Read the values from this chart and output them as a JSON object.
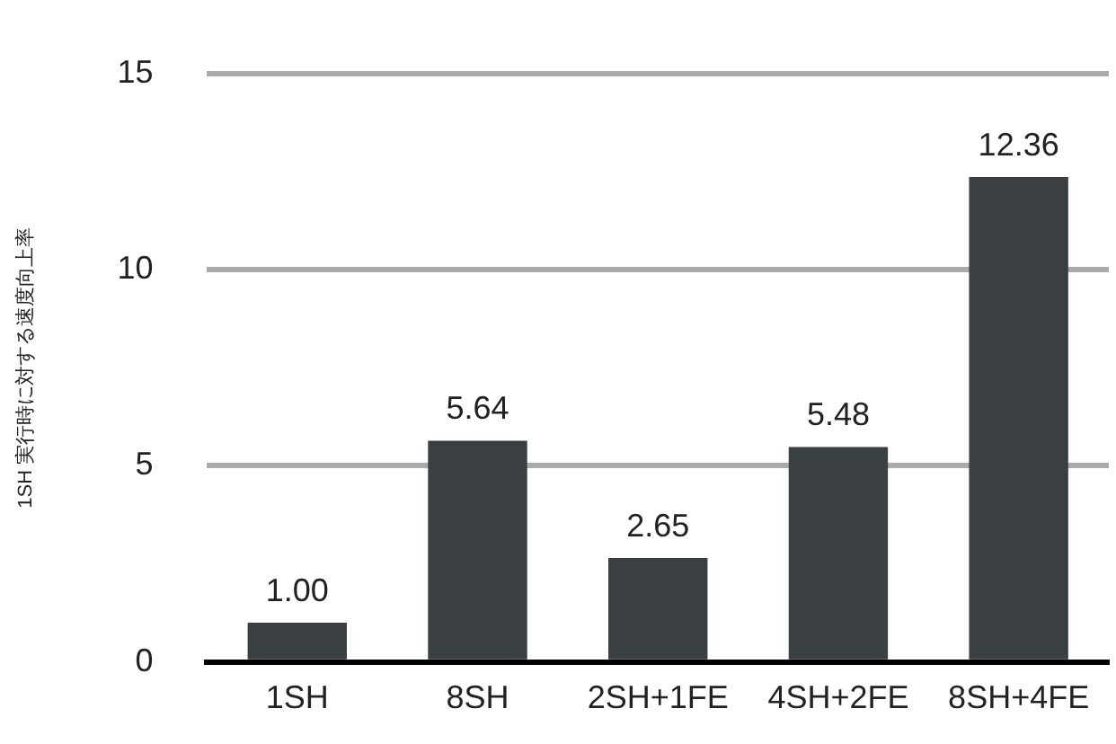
{
  "chart_data": {
    "type": "bar",
    "ylabel": "1SH 実行時に対する速度向上率",
    "categories": [
      "1SH",
      "8SH",
      "2SH+1FE",
      "4SH+2FE",
      "8SH+4FE"
    ],
    "values": [
      1.0,
      5.64,
      2.65,
      5.48,
      12.36
    ],
    "value_labels": [
      "1.00",
      "5.64",
      "2.65",
      "5.48",
      "12.36"
    ],
    "color": "#3a3f42",
    "ylim": [
      0,
      15
    ],
    "yticks": [
      0,
      5,
      10,
      15
    ],
    "grid": "y",
    "legend": false
  }
}
